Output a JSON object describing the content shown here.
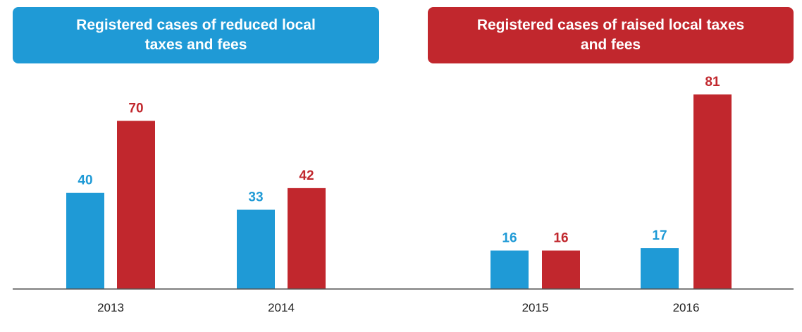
{
  "legend": {
    "reduced": "Registered cases of reduced local taxes and fees",
    "raised": "Registered cases of raised local taxes and fees"
  },
  "colors": {
    "reduced": "#1f9ad6",
    "raised": "#c1272d",
    "axis": "#555555"
  },
  "chart_data": {
    "type": "bar",
    "categories": [
      "2013",
      "2014",
      "2015",
      "2016"
    ],
    "series": [
      {
        "name": "Registered cases of reduced local taxes and fees",
        "values": [
          40,
          33,
          16,
          17
        ]
      },
      {
        "name": "Registered cases of raised local taxes and fees",
        "values": [
          70,
          42,
          16,
          81
        ]
      }
    ],
    "ylim": [
      0,
      81
    ],
    "grid": false,
    "legend_position": "top"
  }
}
